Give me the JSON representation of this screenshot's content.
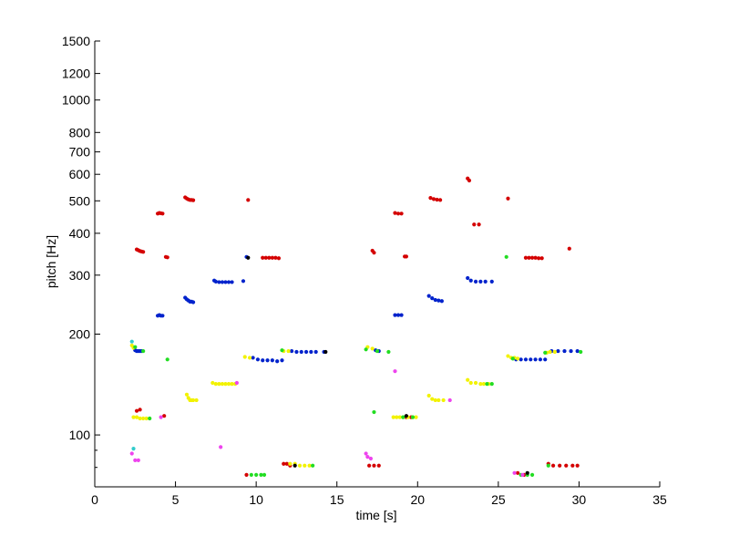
{
  "chart_data": {
    "type": "scatter",
    "xlabel": "time [s]",
    "ylabel": "pitch [Hz]",
    "xlim": [
      0,
      35
    ],
    "ylim": [
      70,
      1500
    ],
    "yscale": "log",
    "grid": false,
    "x_ticks": [
      0,
      5,
      10,
      15,
      20,
      25,
      30,
      35
    ],
    "y_ticks": [
      100,
      200,
      300,
      400,
      500,
      600,
      700,
      800,
      1000,
      1200,
      1500
    ],
    "y_minor_ticks": [
      80,
      90
    ],
    "colors": {
      "red": "#d40000",
      "blue": "#0022cc",
      "yellow": "#f2f200",
      "green": "#22dd22",
      "magenta": "#ee44ee",
      "cyan": "#33cccc",
      "black": "#000000"
    },
    "series": [
      {
        "color": "red",
        "points": [
          [
            2.6,
            358
          ],
          [
            2.7,
            356
          ],
          [
            2.8,
            354
          ],
          [
            2.9,
            353
          ],
          [
            3.0,
            352
          ],
          [
            3.9,
            458
          ],
          [
            4.0,
            460
          ],
          [
            4.1,
            459
          ],
          [
            4.2,
            458
          ],
          [
            4.4,
            340
          ],
          [
            4.5,
            339
          ],
          [
            5.6,
            512
          ],
          [
            5.7,
            508
          ],
          [
            5.8,
            505
          ],
          [
            5.9,
            503
          ],
          [
            6.0,
            503
          ],
          [
            6.1,
            502
          ],
          [
            9.5,
            503
          ],
          [
            10.4,
            338
          ],
          [
            10.6,
            338
          ],
          [
            10.8,
            338
          ],
          [
            11.0,
            338
          ],
          [
            11.2,
            338
          ],
          [
            11.4,
            337
          ],
          [
            17.2,
            355
          ],
          [
            17.3,
            350
          ],
          [
            18.6,
            460
          ],
          [
            18.8,
            458
          ],
          [
            19.0,
            458
          ],
          [
            19.2,
            341
          ],
          [
            19.3,
            341
          ],
          [
            20.8,
            510
          ],
          [
            21.0,
            506
          ],
          [
            21.2,
            504
          ],
          [
            21.4,
            503
          ],
          [
            23.1,
            583
          ],
          [
            23.2,
            575
          ],
          [
            23.5,
            425
          ],
          [
            23.8,
            425
          ],
          [
            25.6,
            508
          ],
          [
            26.7,
            338
          ],
          [
            26.9,
            338
          ],
          [
            27.1,
            338
          ],
          [
            27.3,
            338
          ],
          [
            27.5,
            337
          ],
          [
            27.7,
            337
          ],
          [
            29.4,
            360
          ],
          [
            2.6,
            118
          ],
          [
            2.8,
            119
          ],
          [
            4.3,
            114
          ],
          [
            9.4,
            76
          ],
          [
            11.7,
            82
          ],
          [
            11.9,
            82
          ],
          [
            12.1,
            81
          ],
          [
            17.0,
            81
          ],
          [
            17.3,
            81
          ],
          [
            17.6,
            81
          ],
          [
            19.3,
            113
          ],
          [
            19.6,
            113
          ],
          [
            26.2,
            77
          ],
          [
            26.6,
            76
          ],
          [
            28.1,
            82
          ],
          [
            28.4,
            81
          ],
          [
            28.8,
            81
          ],
          [
            29.2,
            81
          ],
          [
            29.6,
            81
          ],
          [
            29.9,
            81
          ]
        ]
      },
      {
        "color": "blue",
        "points": [
          [
            2.5,
            179
          ],
          [
            2.6,
            178
          ],
          [
            2.7,
            178
          ],
          [
            2.8,
            178
          ],
          [
            2.9,
            178
          ],
          [
            3.9,
            227
          ],
          [
            4.0,
            228
          ],
          [
            4.1,
            227
          ],
          [
            4.2,
            227
          ],
          [
            5.6,
            257
          ],
          [
            5.7,
            254
          ],
          [
            5.8,
            252
          ],
          [
            5.9,
            250
          ],
          [
            6.0,
            250
          ],
          [
            6.1,
            249
          ],
          [
            7.4,
            289
          ],
          [
            7.5,
            287
          ],
          [
            7.7,
            286
          ],
          [
            7.9,
            286
          ],
          [
            8.1,
            286
          ],
          [
            8.3,
            286
          ],
          [
            8.5,
            286
          ],
          [
            9.2,
            288
          ],
          [
            9.4,
            340
          ],
          [
            9.8,
            170
          ],
          [
            10.1,
            168
          ],
          [
            10.4,
            167
          ],
          [
            10.7,
            167
          ],
          [
            11.0,
            167
          ],
          [
            11.3,
            166
          ],
          [
            11.6,
            167
          ],
          [
            12.2,
            178
          ],
          [
            12.5,
            177
          ],
          [
            12.8,
            177
          ],
          [
            13.1,
            177
          ],
          [
            13.4,
            177
          ],
          [
            13.7,
            177
          ],
          [
            14.2,
            177
          ],
          [
            17.4,
            179
          ],
          [
            17.6,
            178
          ],
          [
            18.6,
            228
          ],
          [
            18.8,
            228
          ],
          [
            19.0,
            228
          ],
          [
            20.7,
            260
          ],
          [
            20.9,
            256
          ],
          [
            21.1,
            253
          ],
          [
            21.3,
            252
          ],
          [
            21.5,
            251
          ],
          [
            23.1,
            294
          ],
          [
            23.3,
            289
          ],
          [
            23.6,
            287
          ],
          [
            23.9,
            287
          ],
          [
            24.2,
            287
          ],
          [
            24.6,
            287
          ],
          [
            26.1,
            168
          ],
          [
            26.4,
            168
          ],
          [
            26.7,
            168
          ],
          [
            27.0,
            168
          ],
          [
            27.3,
            168
          ],
          [
            27.6,
            168
          ],
          [
            27.9,
            168
          ],
          [
            28.3,
            178
          ],
          [
            28.7,
            178
          ],
          [
            29.1,
            178
          ],
          [
            29.5,
            178
          ],
          [
            29.9,
            178
          ]
        ]
      },
      {
        "color": "yellow",
        "points": [
          [
            2.3,
            185
          ],
          [
            2.4,
            182
          ],
          [
            2.4,
            113
          ],
          [
            2.6,
            113
          ],
          [
            2.8,
            112
          ],
          [
            3.0,
            112
          ],
          [
            3.2,
            112
          ],
          [
            5.7,
            132
          ],
          [
            5.8,
            129
          ],
          [
            5.9,
            127
          ],
          [
            6.0,
            127
          ],
          [
            6.1,
            127
          ],
          [
            6.3,
            127
          ],
          [
            7.3,
            143
          ],
          [
            7.5,
            142
          ],
          [
            7.7,
            142
          ],
          [
            7.9,
            142
          ],
          [
            8.1,
            142
          ],
          [
            8.3,
            142
          ],
          [
            8.5,
            142
          ],
          [
            8.7,
            142
          ],
          [
            9.3,
            171
          ],
          [
            9.6,
            170
          ],
          [
            11.7,
            178
          ],
          [
            12.0,
            178
          ],
          [
            12.1,
            82
          ],
          [
            12.4,
            82
          ],
          [
            12.7,
            81
          ],
          [
            13.0,
            81
          ],
          [
            13.3,
            81
          ],
          [
            16.9,
            183
          ],
          [
            17.2,
            181
          ],
          [
            18.5,
            113
          ],
          [
            18.7,
            113
          ],
          [
            18.9,
            113
          ],
          [
            19.1,
            113
          ],
          [
            19.4,
            113
          ],
          [
            19.7,
            113
          ],
          [
            19.9,
            113
          ],
          [
            20.7,
            131
          ],
          [
            20.9,
            128
          ],
          [
            21.1,
            127
          ],
          [
            21.3,
            127
          ],
          [
            21.6,
            127
          ],
          [
            23.1,
            146
          ],
          [
            23.3,
            143
          ],
          [
            23.6,
            143
          ],
          [
            23.9,
            142
          ],
          [
            24.1,
            142
          ],
          [
            24.4,
            142
          ],
          [
            25.6,
            172
          ],
          [
            25.8,
            170
          ],
          [
            26.0,
            170
          ],
          [
            26.2,
            169
          ],
          [
            28.0,
            176
          ],
          [
            28.2,
            177
          ],
          [
            28.5,
            177
          ]
        ]
      },
      {
        "color": "green",
        "points": [
          [
            2.5,
            183
          ],
          [
            3.0,
            178
          ],
          [
            4.5,
            168
          ],
          [
            3.4,
            112
          ],
          [
            9.7,
            76
          ],
          [
            10.0,
            76
          ],
          [
            10.3,
            76
          ],
          [
            10.5,
            76
          ],
          [
            11.6,
            179
          ],
          [
            13.5,
            81
          ],
          [
            16.8,
            180
          ],
          [
            17.5,
            178
          ],
          [
            18.2,
            177
          ],
          [
            17.3,
            117
          ],
          [
            19.1,
            113
          ],
          [
            19.7,
            113
          ],
          [
            24.3,
            142
          ],
          [
            24.6,
            142
          ],
          [
            25.5,
            340
          ],
          [
            25.9,
            169
          ],
          [
            26.4,
            76
          ],
          [
            26.8,
            76
          ],
          [
            27.1,
            76
          ],
          [
            27.9,
            176
          ],
          [
            28.1,
            81
          ],
          [
            30.1,
            177
          ]
        ]
      },
      {
        "color": "magenta",
        "points": [
          [
            2.3,
            88
          ],
          [
            2.5,
            84
          ],
          [
            2.7,
            84
          ],
          [
            4.1,
            113
          ],
          [
            7.8,
            92
          ],
          [
            8.8,
            143
          ],
          [
            16.8,
            88
          ],
          [
            16.9,
            86
          ],
          [
            17.1,
            85
          ],
          [
            18.6,
            155
          ],
          [
            22.0,
            127
          ],
          [
            26.0,
            77
          ],
          [
            26.5,
            76
          ]
        ]
      },
      {
        "color": "cyan",
        "points": [
          [
            2.3,
            190
          ],
          [
            2.4,
            91
          ]
        ]
      },
      {
        "color": "black",
        "points": [
          [
            9.5,
            338
          ],
          [
            14.3,
            177
          ],
          [
            19.3,
            114
          ],
          [
            12.4,
            81
          ],
          [
            26.8,
            77
          ]
        ]
      }
    ]
  }
}
